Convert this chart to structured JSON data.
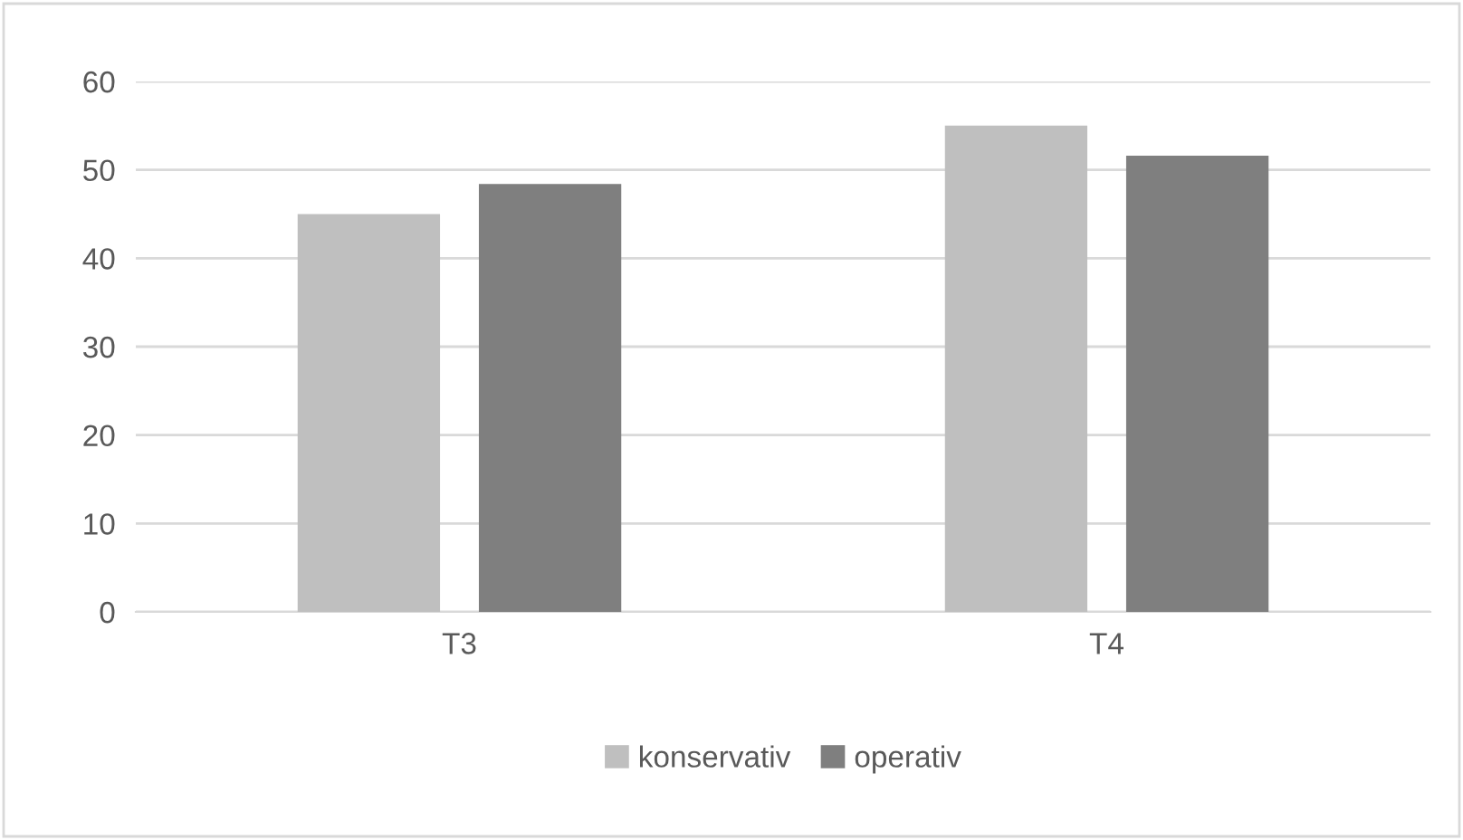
{
  "chart_data": {
    "type": "bar",
    "categories": [
      "T3",
      "T4"
    ],
    "series": [
      {
        "name": "konservativ",
        "color": "#bfbfbf",
        "values": [
          45,
          55
        ]
      },
      {
        "name": "operativ",
        "color": "#7f7f7f",
        "values": [
          48.4,
          51.6
        ]
      }
    ],
    "ylim": [
      0,
      60
    ],
    "yticks": [
      0,
      10,
      20,
      30,
      40,
      50,
      60
    ],
    "grid": "y",
    "legend": "bottom"
  }
}
